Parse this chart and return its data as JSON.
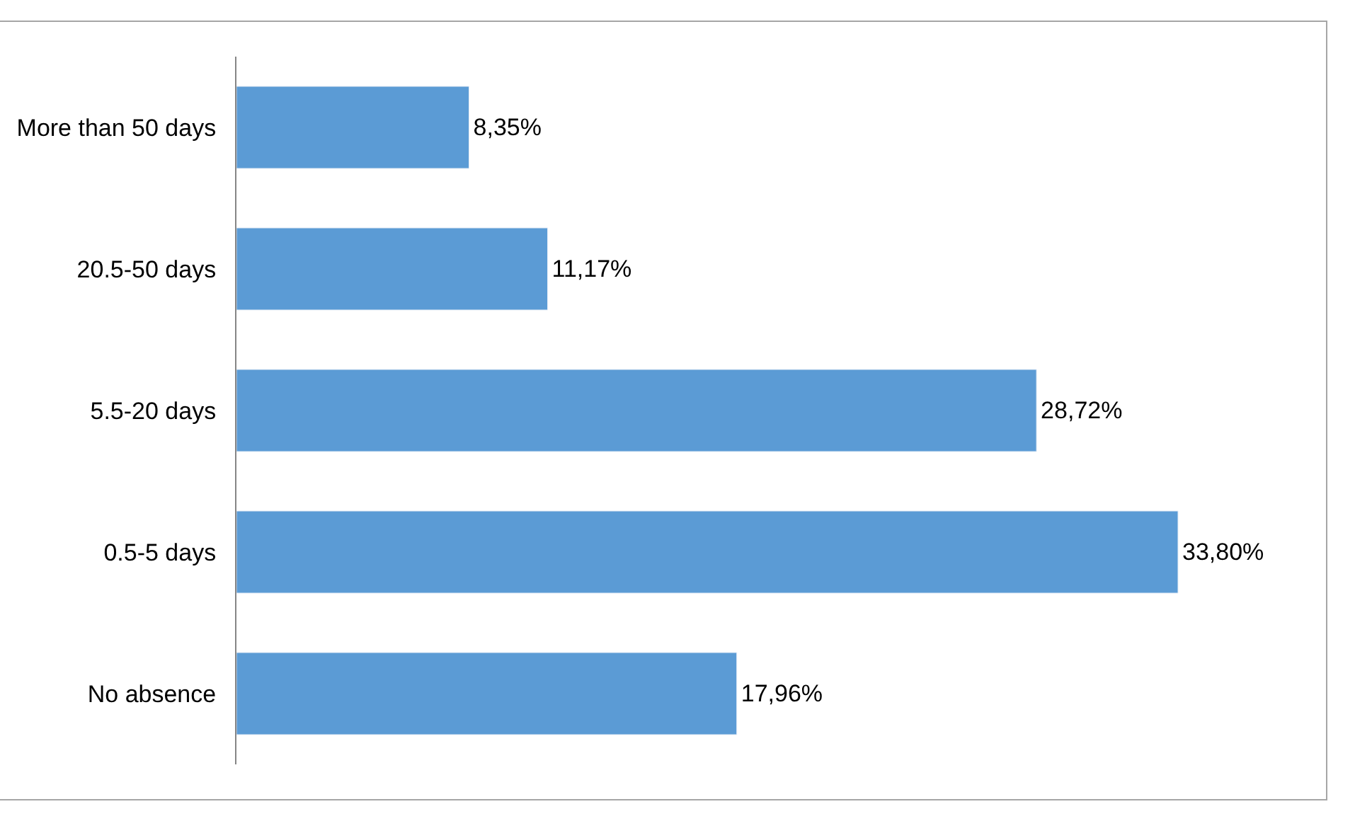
{
  "chart_data": {
    "type": "bar",
    "orientation": "horizontal",
    "categories": [
      "More than 50 days",
      "20.5-50 days",
      "5.5-20 days",
      "0.5-5 days",
      "No absence"
    ],
    "values": [
      8.35,
      11.17,
      28.72,
      33.8,
      17.96
    ],
    "value_labels": [
      "8,35%",
      "11,17%",
      "28,72%",
      "33,80%",
      "17,96%"
    ],
    "color": "#5b9bd5",
    "tick_labels": "y"
  }
}
